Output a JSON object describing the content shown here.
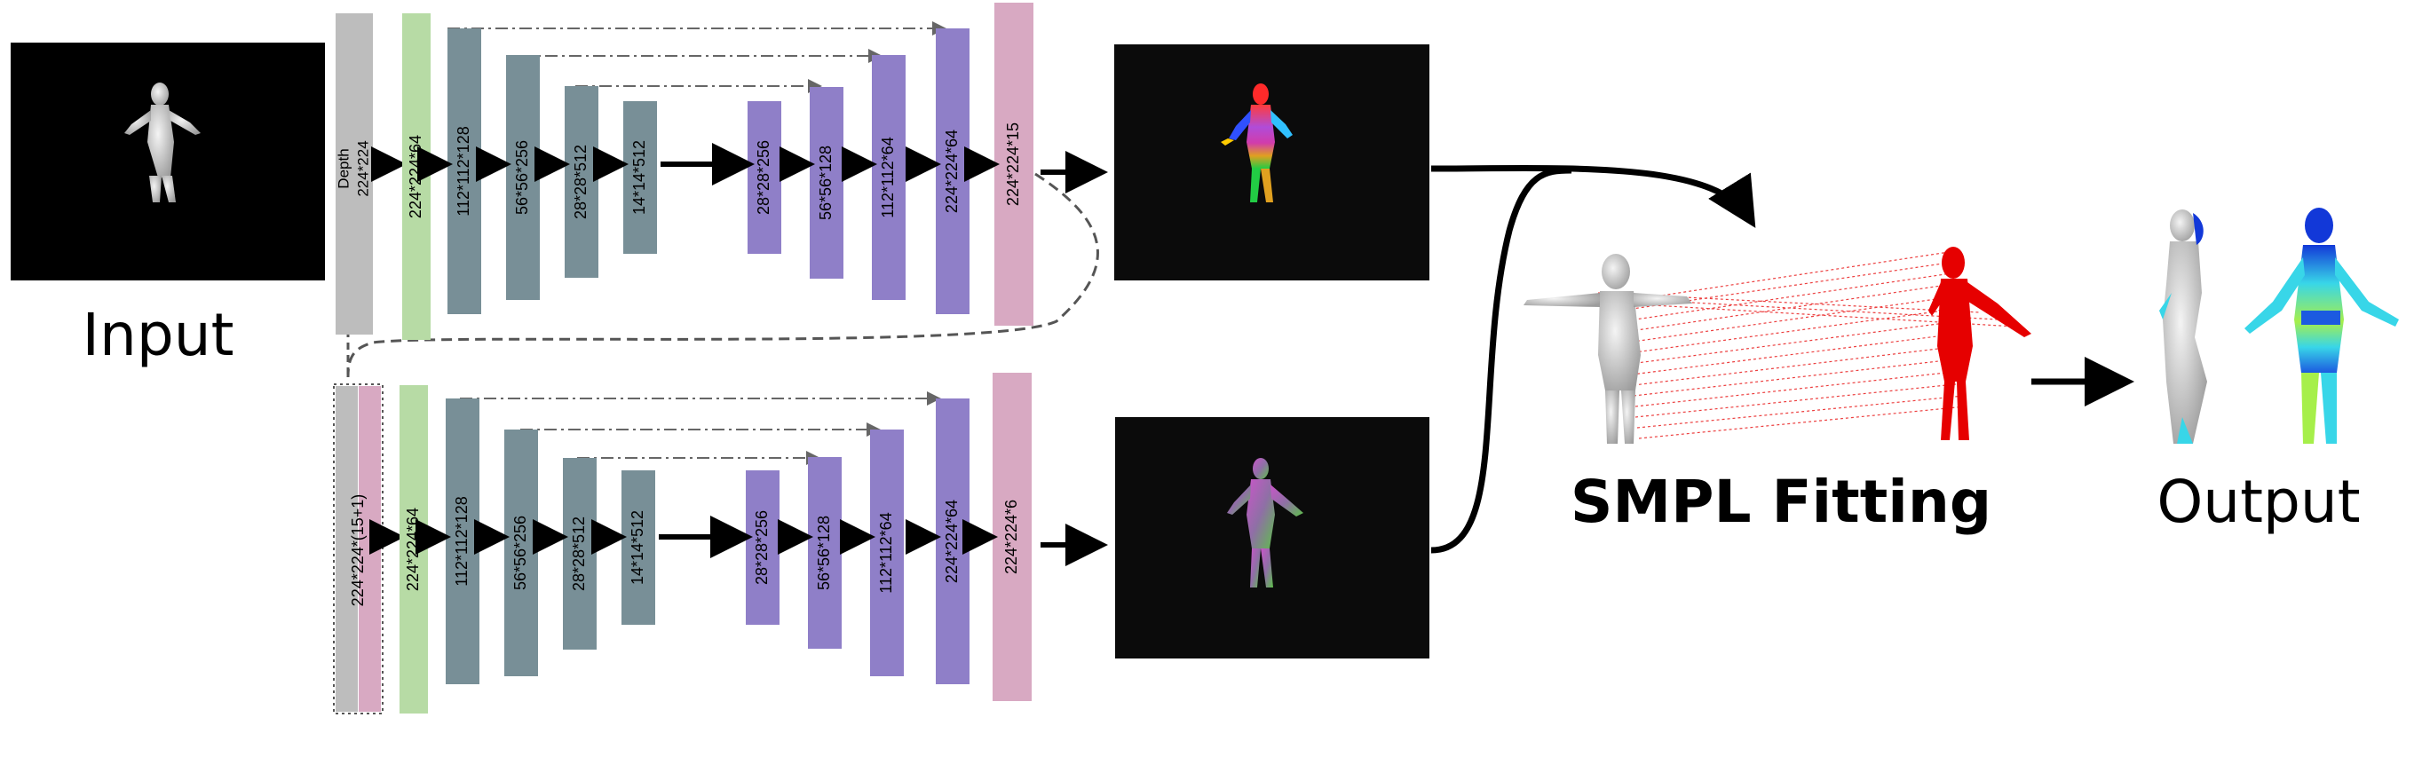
{
  "labels": {
    "input": "Input",
    "smpl_fitting": "SMPL Fitting",
    "output": "Output"
  },
  "top_unet": {
    "input_block": [
      "Depth",
      "224*224"
    ],
    "layers": [
      "224*224*64",
      "112*112*128",
      "56*56*256",
      "28*28*512",
      "14*14*512",
      "28*28*256",
      "56*56*128",
      "112*112*64",
      "224*224*64",
      "224*224*15"
    ]
  },
  "bottom_unet": {
    "input_block": "224*224*(15+1)",
    "layers": [
      "224*224*64",
      "112*112*128",
      "56*56*256",
      "28*28*512",
      "14*14*512",
      "28*28*256",
      "56*56*128",
      "112*112*64",
      "224*224*64",
      "224*224*6"
    ]
  },
  "colors": {
    "gray": "#bdbdbd",
    "green": "#b7dba5",
    "slate": "#788f97",
    "purple": "#8f7fc8",
    "pink": "#d8a9c2",
    "dark_panel": "#0b0b0b",
    "correspondence_red": "#e60000"
  }
}
